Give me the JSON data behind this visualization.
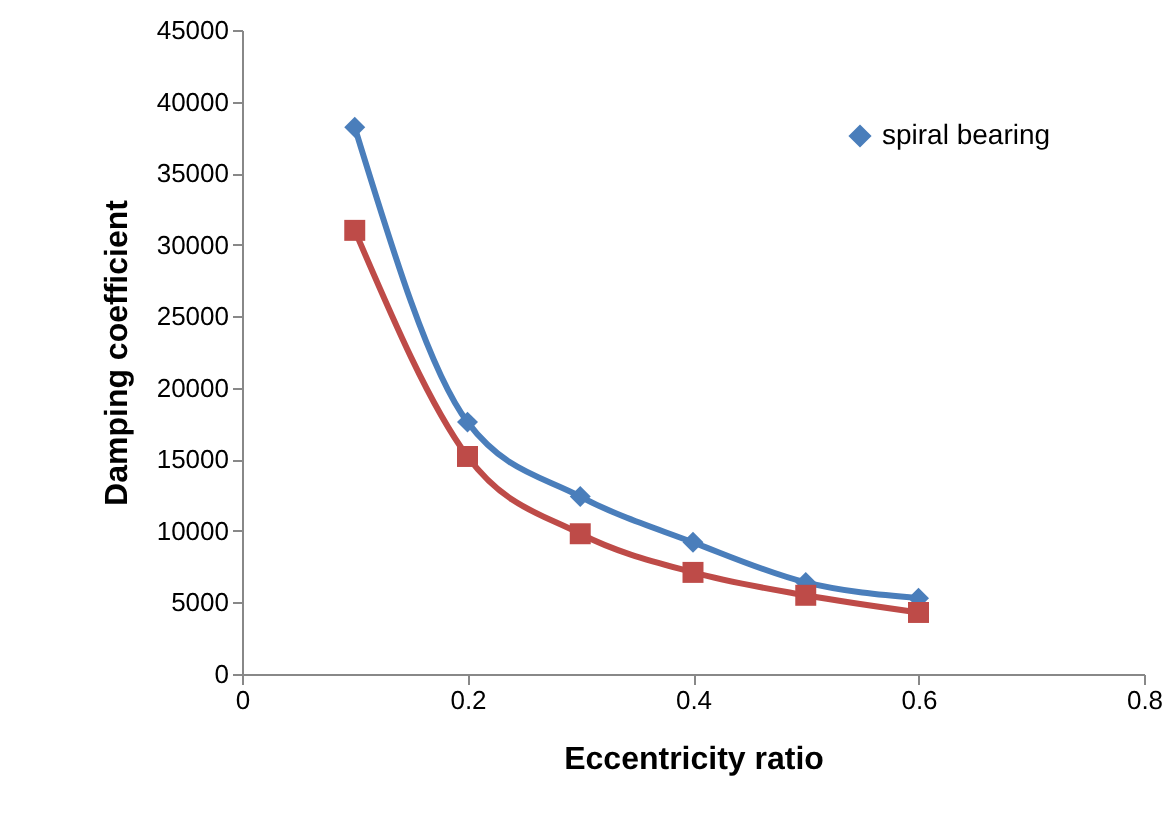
{
  "chart_data": {
    "type": "line",
    "xlabel": "Eccentricity ratio",
    "ylabel": "Damping coefficient",
    "x": [
      0.1,
      0.2,
      0.3,
      0.4,
      0.5,
      0.6
    ],
    "series": [
      {
        "name": "spiral bearing",
        "color": "#4a7ebb",
        "marker": "diamond",
        "values": [
          38200,
          17600,
          12400,
          9200,
          6400,
          5300
        ]
      },
      {
        "color": "#be4b48",
        "marker": "square",
        "values": [
          31000,
          15200,
          9800,
          7100,
          5500,
          4300
        ]
      }
    ],
    "xlim": [
      0,
      0.8
    ],
    "xticks": [
      0,
      0.2,
      0.4,
      0.6,
      0.8
    ],
    "ylim": [
      0,
      45000
    ],
    "yticks": [
      0,
      5000,
      10000,
      15000,
      20000,
      25000,
      30000,
      35000,
      40000,
      45000
    ],
    "grid": false,
    "legend": "top right",
    "line_style": "solid"
  }
}
